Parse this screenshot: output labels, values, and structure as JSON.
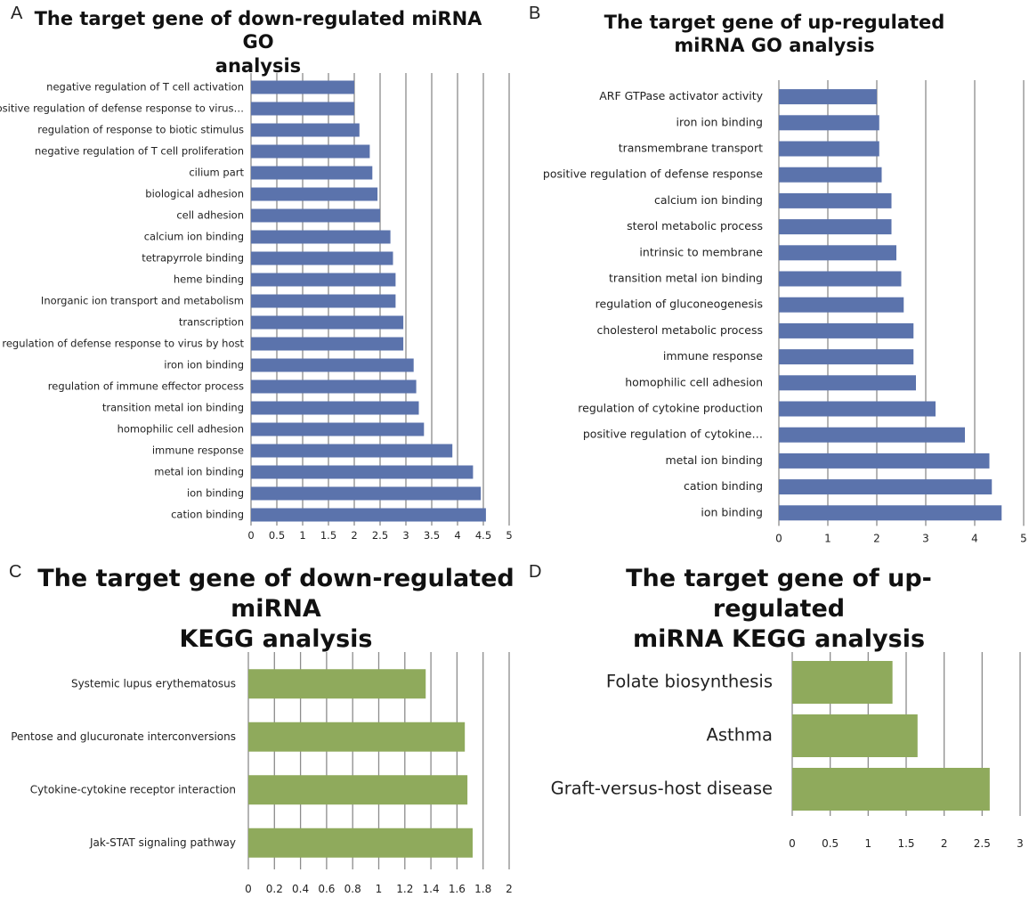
{
  "chart_data": [
    {
      "id": "A",
      "panel_label": "A",
      "type": "bar",
      "orientation": "horizontal",
      "title": "The target gene of down-regulated miRNA GO analysis",
      "title_lines": [
        "The target gene of down-regulated miRNA GO",
        "analysis"
      ],
      "categories": [
        "negative regulation of T cell activation",
        "positive regulation of defense response to virus…",
        "regulation of response to biotic stimulus",
        "negative regulation of T cell proliferation",
        "cilium part",
        "biological adhesion",
        "cell adhesion",
        "calcium ion binding",
        "tetrapyrrole binding",
        "heme binding",
        "Inorganic ion transport and metabolism",
        "transcription",
        "regulation of defense response to virus by host",
        "iron ion binding",
        "regulation of immune effector process",
        "transition metal ion binding",
        "homophilic cell adhesion",
        "immune response",
        "metal ion binding",
        "ion binding",
        "cation binding"
      ],
      "values": [
        2.0,
        2.0,
        2.1,
        2.3,
        2.35,
        2.45,
        2.5,
        2.7,
        2.75,
        2.8,
        2.8,
        2.95,
        2.95,
        3.15,
        3.2,
        3.25,
        3.35,
        3.9,
        4.3,
        4.45,
        4.55
      ],
      "xlim": [
        0,
        5
      ],
      "xticks": [
        "0",
        "0.5",
        "1",
        "1.5",
        "2",
        "2.5",
        "3",
        "3.5",
        "4",
        "4.5",
        "5"
      ],
      "grid": true,
      "bar_color": "#5b73ac"
    },
    {
      "id": "B",
      "panel_label": "B",
      "type": "bar",
      "orientation": "horizontal",
      "title": "The target gene of up-regulated miRNA GO analysis",
      "title_lines": [
        "The target gene of up-regulated",
        "miRNA GO analysis"
      ],
      "categories": [
        "ARF GTPase activator activity",
        "iron ion binding",
        "transmembrane transport",
        "positive regulation of defense response",
        "calcium ion binding",
        "sterol metabolic process",
        "intrinsic to membrane",
        "transition metal ion binding",
        "regulation of gluconeogenesis",
        "cholesterol metabolic process",
        "immune response",
        "homophilic cell adhesion",
        "regulation of cytokine production",
        "positive regulation of cytokine…",
        "metal ion binding",
        "cation binding",
        "ion binding"
      ],
      "values": [
        2.0,
        2.05,
        2.05,
        2.1,
        2.3,
        2.3,
        2.4,
        2.5,
        2.55,
        2.75,
        2.75,
        2.8,
        3.2,
        3.8,
        4.3,
        4.35,
        4.55
      ],
      "xlim": [
        0,
        5
      ],
      "xticks": [
        "0",
        "1",
        "2",
        "3",
        "4",
        "5"
      ],
      "grid": true,
      "bar_color": "#5b73ac"
    },
    {
      "id": "C",
      "panel_label": "C",
      "type": "bar",
      "orientation": "horizontal",
      "title": "The target gene of down-regulated miRNA KEGG analysis",
      "title_lines": [
        "The target gene of down-regulated miRNA",
        "KEGG analysis"
      ],
      "categories": [
        "Systemic lupus erythematosus",
        "Pentose and glucuronate interconversions",
        "Cytokine-cytokine receptor interaction",
        "Jak-STAT signaling pathway"
      ],
      "values": [
        1.36,
        1.66,
        1.68,
        1.72
      ],
      "xlim": [
        0,
        2
      ],
      "xticks": [
        "0",
        "0.2",
        "0.4",
        "0.6",
        "0.8",
        "1",
        "1.2",
        "1.4",
        "1.6",
        "1.8",
        "2"
      ],
      "grid": true,
      "bar_color": "#8faa5c"
    },
    {
      "id": "D",
      "panel_label": "D",
      "type": "bar",
      "orientation": "horizontal",
      "title": "The target gene of up-regulated miRNA KEGG analysis",
      "title_lines": [
        "The target gene of up-regulated",
        "miRNA KEGG analysis"
      ],
      "categories": [
        "Folate biosynthesis",
        "Asthma",
        "Graft-versus-host disease"
      ],
      "values": [
        1.32,
        1.65,
        2.6
      ],
      "xlim": [
        0,
        3
      ],
      "xticks": [
        "0",
        "0.5",
        "1",
        "1.5",
        "2",
        "2.5",
        "3"
      ],
      "grid": true,
      "bar_color": "#8faa5c"
    }
  ]
}
